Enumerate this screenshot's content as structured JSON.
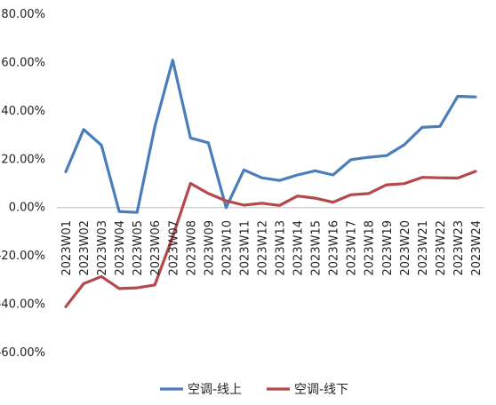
{
  "chart_data": {
    "type": "line",
    "title": "",
    "xlabel": "",
    "ylabel": "",
    "categories": [
      "2023W01",
      "2023W02",
      "2023W03",
      "2023W04",
      "2023W05",
      "2023W06",
      "2023W07",
      "2023W08",
      "2023W09",
      "2023W10",
      "2023W11",
      "2023W12",
      "2023W13",
      "2023W14",
      "2023W15",
      "2023W16",
      "2023W17",
      "2023W18",
      "2023W19",
      "2023W20",
      "2023W21",
      "2023W22",
      "2023W23",
      "2023W24"
    ],
    "y_ticks": [
      "80.00%",
      "60.00%",
      "40.00%",
      "20.00%",
      "0.00%",
      "-20.00%",
      "-40.00%",
      "-60.00%"
    ],
    "ylim": [
      -60,
      80
    ],
    "grid": false,
    "legend_position": "bottom",
    "series": [
      {
        "name": "空调-线上",
        "color": "#4a7ebb",
        "values": [
          14.8,
          32.3,
          25.8,
          -1.6,
          -2.0,
          33.5,
          61.0,
          28.8,
          26.8,
          0.0,
          15.6,
          12.3,
          11.2,
          13.5,
          15.2,
          13.5,
          19.8,
          20.8,
          21.5,
          26.0,
          33.2,
          33.6,
          46.0,
          45.8
        ]
      },
      {
        "name": "空调-线下",
        "color": "#b5484a",
        "values": [
          -41.0,
          -31.5,
          -28.5,
          -33.5,
          -33.2,
          -32.0,
          -12.0,
          10.0,
          5.8,
          2.8,
          1.0,
          1.8,
          0.9,
          4.8,
          3.9,
          2.2,
          5.3,
          5.8,
          9.4,
          9.9,
          12.5,
          12.3,
          12.2,
          15.0
        ]
      }
    ]
  }
}
